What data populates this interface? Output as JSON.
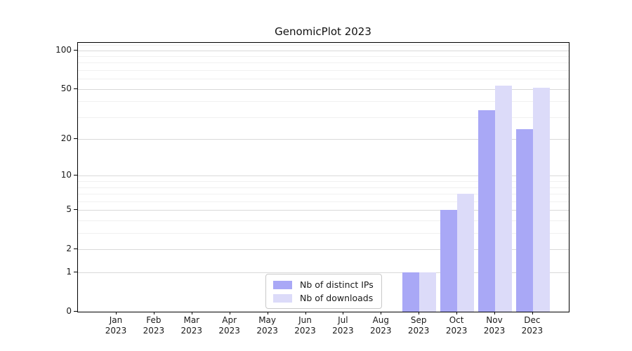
{
  "title": "GenomicPlot 2023",
  "chart_data": {
    "type": "bar",
    "title": "GenomicPlot 2023",
    "categories": [
      "Jan",
      "Feb",
      "Mar",
      "Apr",
      "May",
      "Jun",
      "Jul",
      "Aug",
      "Sep",
      "Oct",
      "Nov",
      "Dec"
    ],
    "category_year": "2023",
    "series": [
      {
        "name": "Nb of distinct IPs",
        "color": "#a9a8f6",
        "values": [
          0,
          0,
          0,
          0,
          0,
          0,
          0,
          0,
          1,
          5,
          34,
          24
        ]
      },
      {
        "name": "Nb of downloads",
        "color": "#dcdbf9",
        "values": [
          0,
          0,
          0,
          0,
          0,
          0,
          0,
          0,
          1,
          7,
          53,
          51
        ]
      }
    ],
    "y_scale": "log1p",
    "y_ticks": [
      0,
      1,
      2,
      5,
      10,
      20,
      50,
      100
    ],
    "y_minor_gridlines": [
      3,
      4,
      6,
      7,
      8,
      9,
      30,
      40,
      60,
      70,
      80,
      90,
      110
    ],
    "y_axis_top_value": 114,
    "xlabel": "",
    "ylabel": "",
    "grid": "horizontal",
    "legend_position": "bottom-center",
    "colors": {
      "bar_distinct_ips": "#a9a8f6",
      "bar_downloads": "#dcdbf9",
      "major_grid": "#d9d9d9",
      "minor_grid": "#f0f0f0",
      "axis": "#000000",
      "text": "#1a1a1a"
    }
  }
}
